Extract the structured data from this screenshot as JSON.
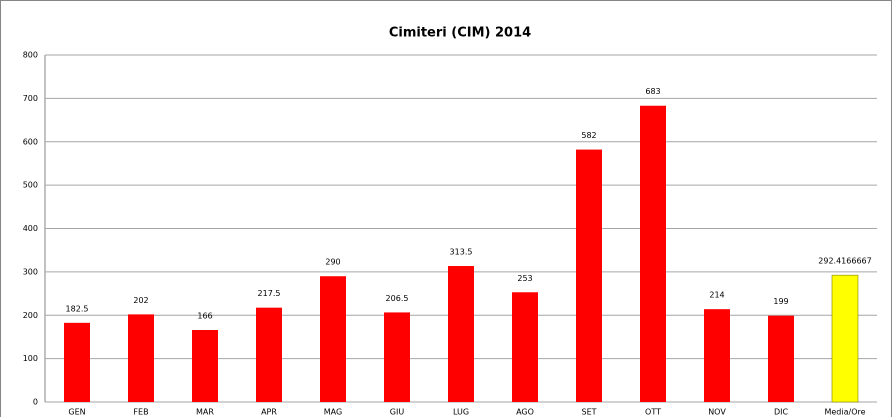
{
  "chart_data": {
    "type": "bar",
    "title": "Cimiteri (CIM) 2014",
    "categories": [
      "GEN",
      "FEB",
      "MAR",
      "APR",
      "MAG",
      "GIU",
      "LUG",
      "AGO",
      "SET",
      "OTT",
      "NOV",
      "DIC",
      "Media/Ore"
    ],
    "values": [
      182.5,
      202,
      166,
      217.5,
      290,
      206.5,
      313.5,
      253,
      582,
      683,
      214,
      199,
      292.4166667
    ],
    "colors": [
      "#ff0000",
      "#ff0000",
      "#ff0000",
      "#ff0000",
      "#ff0000",
      "#ff0000",
      "#ff0000",
      "#ff0000",
      "#ff0000",
      "#ff0000",
      "#ff0000",
      "#ff0000",
      "#ffff00"
    ],
    "ylim": [
      0,
      800
    ],
    "yticks": [
      0,
      100,
      200,
      300,
      400,
      500,
      600,
      700,
      800
    ],
    "grid": true
  }
}
